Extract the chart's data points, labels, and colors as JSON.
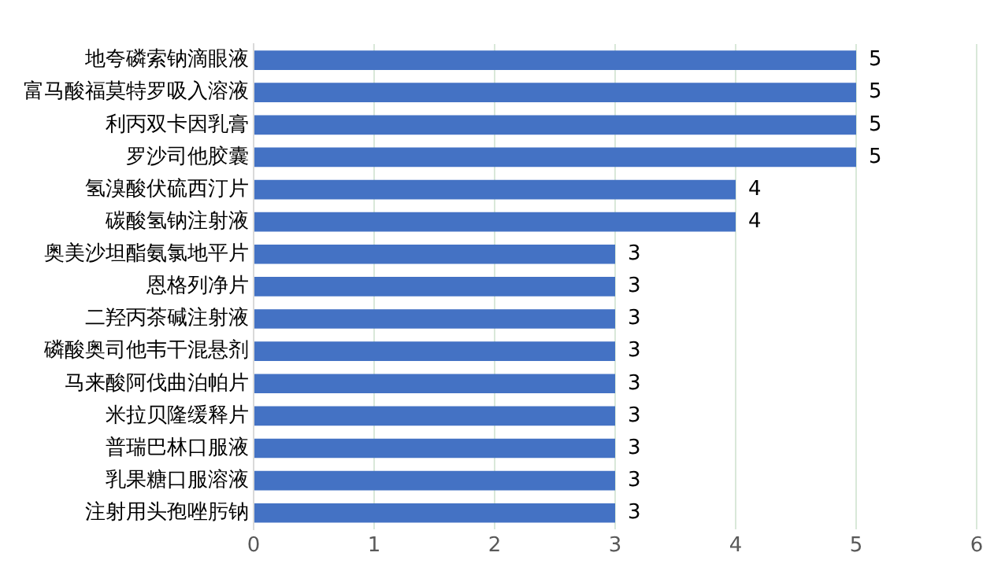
{
  "chart_data": {
    "type": "bar",
    "orientation": "horizontal",
    "categories": [
      "地夸磷索钠滴眼液",
      "富马酸福莫特罗吸入溶液",
      "利丙双卡因乳膏",
      "罗沙司他胶囊",
      "氢溴酸伏硫西汀片",
      "碳酸氢钠注射液",
      "奥美沙坦酯氨氯地平片",
      "恩格列净片",
      "二羟丙茶碱注射液",
      "磷酸奥司他韦干混悬剂",
      "马来酸阿伐曲泊帕片",
      "米拉贝隆缓释片",
      "普瑞巴林口服液",
      "乳果糖口服溶液",
      "注射用头孢唑肟钠"
    ],
    "values": [
      5,
      5,
      5,
      5,
      4,
      4,
      3,
      3,
      3,
      3,
      3,
      3,
      3,
      3,
      3
    ],
    "color": "#4472c4",
    "xlim": [
      0,
      6
    ],
    "xticks": [
      0,
      1,
      2,
      3,
      4,
      5,
      6
    ],
    "grid": "x",
    "data_labels": true
  }
}
